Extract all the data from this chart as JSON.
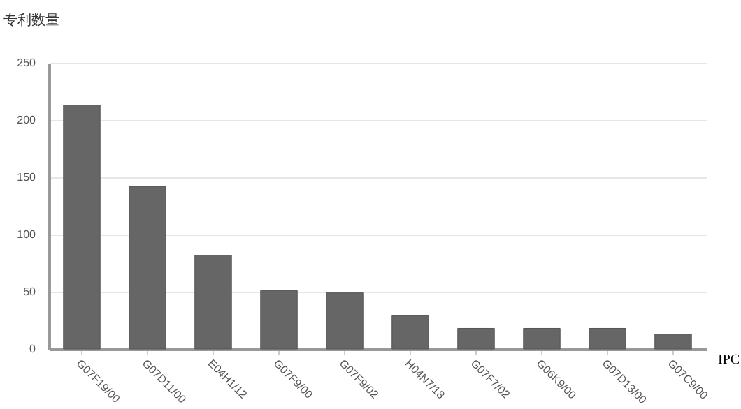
{
  "chart_data": {
    "type": "bar",
    "xlabel": "IPC",
    "ylabel": "专利数量",
    "categories": [
      "G07F19/00",
      "G07D11/00",
      "E04H1/12",
      "G07F9/00",
      "G07F9/02",
      "H04N7/18",
      "G07F7/02",
      "G06K9/00",
      "G07D13/00",
      "G07C9/00"
    ],
    "values": [
      213,
      142,
      82,
      51,
      49,
      29,
      18,
      18,
      18,
      13
    ],
    "color": "#666666",
    "ylim": [
      0,
      250
    ],
    "yticks": [
      0,
      50,
      100,
      150,
      200,
      250
    ],
    "grid": "y"
  }
}
